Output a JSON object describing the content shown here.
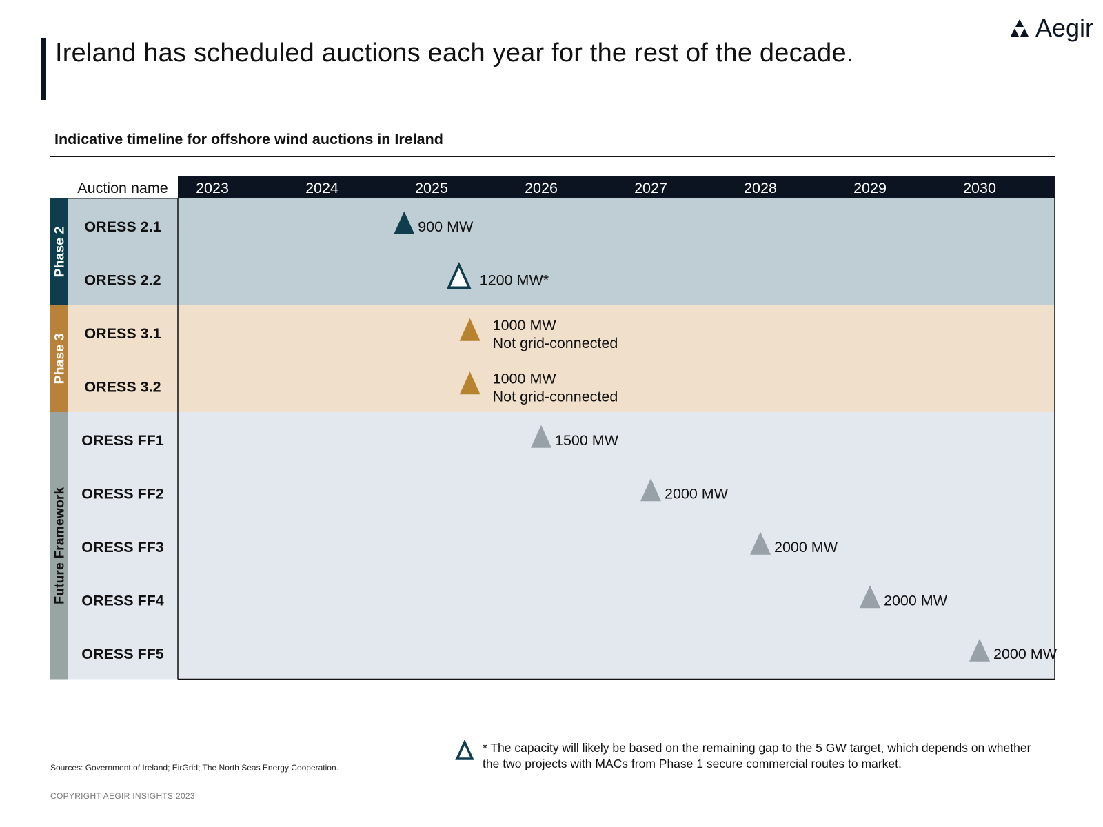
{
  "page": {
    "title": "Ireland has scheduled auctions each year for the rest of the decade.",
    "brand": "Aegir",
    "subtitle": "Indicative timeline for offshore wind auctions in Ireland",
    "legend_note": "* The capacity will likely be based on the remaining gap to the 5 GW target, which depends on whether the two projects with MACs from Phase 1 secure commercial routes to market.",
    "sources": "Sources: Government of Ireland; EirGrid; The North Seas Energy Cooperation.",
    "copyright": "COPYRIGHT AEGIR INSIGHTS 2023"
  },
  "colors": {
    "header_bg": "#0b1420",
    "phase2_band": "#0e3d4e",
    "phase2_bg": "#bfcdd4",
    "phase3_band": "#b8823a",
    "phase3_bg": "#f0dfca",
    "ff_band": "#98a5a3",
    "ff_bg": "#e3e7ee",
    "marker_phase2": "#0e3d4e",
    "marker_phase3": "#b8832f",
    "marker_ff": "#98a1a8",
    "marker_outline": "#0e3d4e"
  },
  "chart_data": {
    "type": "timeline",
    "row_header": "Auction name",
    "years": [
      "2023",
      "2024",
      "2025",
      "2026",
      "2027",
      "2028",
      "2029",
      "2030"
    ],
    "groups": [
      {
        "name": "Phase 2",
        "color_key": "phase2",
        "rows": [
          "ORESS 2.1",
          "ORESS 2.2"
        ]
      },
      {
        "name": "Phase 3",
        "color_key": "phase3",
        "rows": [
          "ORESS 3.1",
          "ORESS 3.2"
        ]
      },
      {
        "name": "Future Framework",
        "color_key": "ff",
        "rows": [
          "ORESS FF1",
          "ORESS FF2",
          "ORESS FF3",
          "ORESS FF4",
          "ORESS FF5"
        ]
      }
    ],
    "events": [
      {
        "row": "ORESS 2.1",
        "year": 2024.75,
        "label": [
          "900 MW"
        ],
        "style": "filled",
        "color_key": "marker_phase2"
      },
      {
        "row": "ORESS 2.2",
        "year": 2025.25,
        "label": [
          "1200 MW*"
        ],
        "style": "outline",
        "color_key": "marker_outline"
      },
      {
        "row": "ORESS 3.1",
        "year": 2025.35,
        "label": [
          "1000 MW",
          "Not grid-connected"
        ],
        "style": "filled",
        "color_key": "marker_phase3"
      },
      {
        "row": "ORESS 3.2",
        "year": 2025.35,
        "label": [
          "1000 MW",
          "Not grid-connected"
        ],
        "style": "filled",
        "color_key": "marker_phase3"
      },
      {
        "row": "ORESS FF1",
        "year": 2026.0,
        "label": [
          "1500 MW"
        ],
        "style": "filled",
        "color_key": "marker_ff"
      },
      {
        "row": "ORESS FF2",
        "year": 2027.0,
        "label": [
          "2000 MW"
        ],
        "style": "filled",
        "color_key": "marker_ff"
      },
      {
        "row": "ORESS FF3",
        "year": 2028.0,
        "label": [
          "2000 MW"
        ],
        "style": "filled",
        "color_key": "marker_ff"
      },
      {
        "row": "ORESS FF4",
        "year": 2029.0,
        "label": [
          "2000 MW"
        ],
        "style": "filled",
        "color_key": "marker_ff"
      },
      {
        "row": "ORESS FF5",
        "year": 2030.0,
        "label": [
          "2000 MW"
        ],
        "style": "filled",
        "color_key": "marker_ff"
      }
    ]
  }
}
